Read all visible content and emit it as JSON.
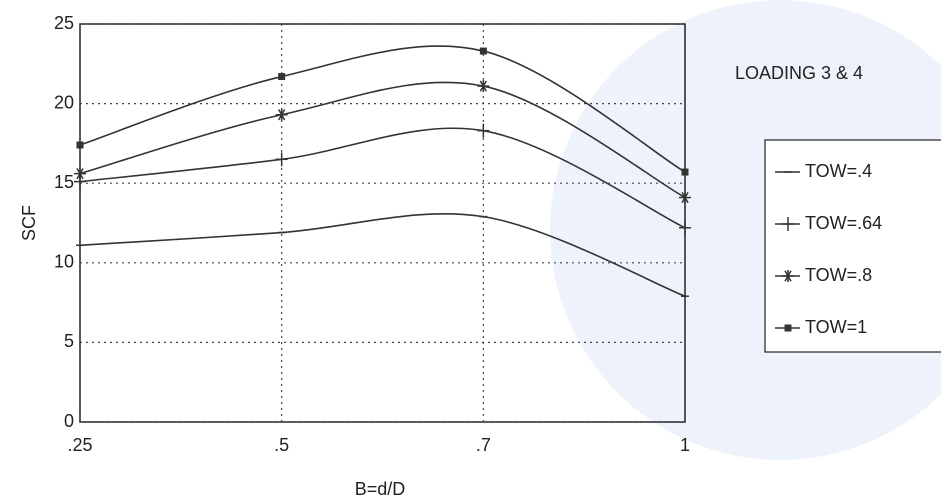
{
  "chart_data": {
    "type": "line",
    "annotation": "LOADING 3 & 4",
    "x_label": "B=d/D",
    "y_label": "SCF",
    "categories": [
      ".25",
      ".5",
      ".7",
      "1"
    ],
    "ylim": [
      0,
      25
    ],
    "yticks": [
      0,
      5,
      10,
      15,
      20,
      25
    ],
    "grid": true,
    "series": [
      {
        "name": "TOW=.4",
        "color": "#333333",
        "marker": "dash",
        "values": [
          11.1,
          11.9,
          12.9,
          7.9
        ]
      },
      {
        "name": "TOW=.64",
        "color": "#333333",
        "marker": "plus",
        "values": [
          15.1,
          16.5,
          18.3,
          12.2
        ]
      },
      {
        "name": "TOW=.8",
        "color": "#333333",
        "marker": "star",
        "values": [
          15.6,
          19.3,
          21.1,
          14.1
        ]
      },
      {
        "name": "TOW=1",
        "color": "#333333",
        "marker": "square",
        "values": [
          17.4,
          21.7,
          23.3,
          15.7
        ]
      }
    ]
  }
}
